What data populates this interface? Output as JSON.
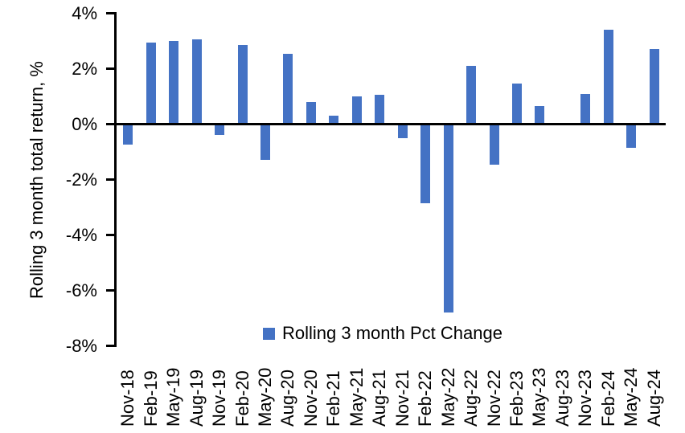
{
  "chart_data": {
    "type": "bar",
    "ylabel": "Rolling 3 month total return, %",
    "xlabel": "",
    "categories": [
      "Nov-18",
      "Feb-19",
      "May-19",
      "Aug-19",
      "Nov-19",
      "Feb-20",
      "May-20",
      "Aug-20",
      "Nov-20",
      "Feb-21",
      "May-21",
      "Aug-21",
      "Nov-21",
      "Feb-22",
      "May-22",
      "Aug-22",
      "Nov-22",
      "Feb-23",
      "May-23",
      "Aug-23",
      "Nov-23",
      "Feb-24",
      "May-24",
      "Aug-24"
    ],
    "values": [
      -0.75,
      2.95,
      3.0,
      3.05,
      -0.4,
      2.85,
      -1.3,
      2.55,
      0.8,
      0.3,
      1.0,
      1.05,
      -0.5,
      -2.85,
      -6.8,
      2.1,
      -1.45,
      1.45,
      0.65,
      0.0,
      1.1,
      3.4,
      -0.85,
      2.7
    ],
    "series": [
      {
        "name": "Rolling 3 month Pct Change"
      }
    ],
    "ylim": [
      -8,
      4
    ],
    "ytick_values": [
      4,
      2,
      0,
      -2,
      -4,
      -6,
      -8
    ],
    "ytick_labels": [
      "4%",
      "2%",
      "0%",
      "-2%",
      "-4%",
      "-6%",
      "-8%"
    ],
    "grid": false,
    "legend": {
      "label": "Rolling 3 month Pct Change",
      "position": "bottom-center"
    },
    "colors": {
      "bar": "#4472C4",
      "axis": "#000000",
      "text": "#000000",
      "background": "#FFFFFF"
    }
  }
}
